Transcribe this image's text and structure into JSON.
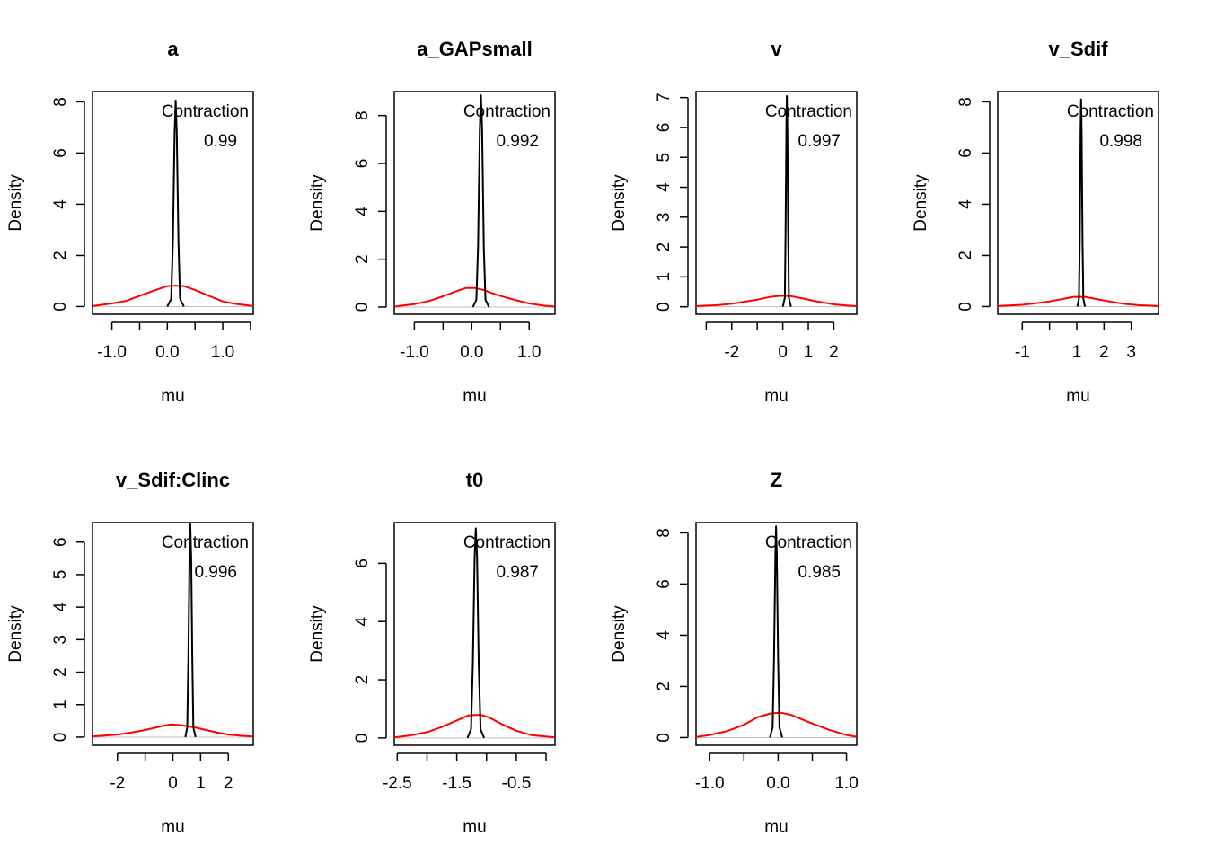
{
  "chart_data": [
    {
      "type": "line",
      "title": "a",
      "xlabel": "mu",
      "ylabel": "Density",
      "xlim": [
        -1.35,
        1.55
      ],
      "ylim": [
        -0.3,
        8.4
      ],
      "xticks": [
        -1.0,
        -0.5,
        0.0,
        0.5,
        1.0,
        1.5
      ],
      "xtick_labels": [
        "-1.0",
        "",
        "0.0",
        "",
        "1.0",
        ""
      ],
      "yticks": [
        0,
        2,
        4,
        6,
        8
      ],
      "ytick_labels": [
        "0",
        "2",
        "4",
        "6",
        "8"
      ],
      "annotation": {
        "label": "Contraction",
        "value": "0.99"
      },
      "series": [
        {
          "color": "#ff0000",
          "x": [
            -1.35,
            -1.0,
            -0.75,
            -0.5,
            -0.25,
            0.0,
            0.15,
            0.3,
            0.5,
            0.75,
            1.0,
            1.25,
            1.55
          ],
          "y": [
            0.02,
            0.12,
            0.22,
            0.42,
            0.62,
            0.8,
            0.82,
            0.8,
            0.65,
            0.42,
            0.2,
            0.1,
            0.02
          ]
        },
        {
          "color": "#000000",
          "x": [
            0.0,
            0.07,
            0.1,
            0.13,
            0.15,
            0.17,
            0.2,
            0.23,
            0.3
          ],
          "y": [
            0.0,
            0.3,
            2.5,
            6.8,
            8.05,
            6.8,
            2.5,
            0.3,
            0.0
          ]
        }
      ]
    },
    {
      "type": "line",
      "title": "a_GAPsmall",
      "xlabel": "mu",
      "ylabel": "Density",
      "xlim": [
        -1.35,
        1.45
      ],
      "ylim": [
        -0.3,
        9.0
      ],
      "xticks": [
        -1.0,
        -0.5,
        0.0,
        0.5,
        1.0
      ],
      "xtick_labels": [
        "-1.0",
        "",
        "0.0",
        "",
        "1.0"
      ],
      "yticks": [
        0,
        2,
        4,
        6,
        8
      ],
      "ytick_labels": [
        "0",
        "2",
        "4",
        "6",
        "8"
      ],
      "annotation": {
        "label": "Contraction",
        "value": "0.992"
      },
      "series": [
        {
          "color": "#ff0000",
          "x": [
            -1.35,
            -1.0,
            -0.75,
            -0.5,
            -0.25,
            -0.1,
            0.05,
            0.2,
            0.45,
            0.75,
            1.0,
            1.25,
            1.45
          ],
          "y": [
            0.02,
            0.12,
            0.25,
            0.45,
            0.68,
            0.8,
            0.8,
            0.72,
            0.5,
            0.3,
            0.15,
            0.06,
            0.02
          ]
        },
        {
          "color": "#000000",
          "x": [
            0.02,
            0.08,
            0.11,
            0.14,
            0.16,
            0.18,
            0.21,
            0.24,
            0.3
          ],
          "y": [
            0.0,
            0.3,
            2.5,
            7.5,
            8.85,
            7.5,
            2.5,
            0.3,
            0.0
          ]
        }
      ]
    },
    {
      "type": "line",
      "title": "v",
      "xlabel": "mu",
      "ylabel": "Density",
      "xlim": [
        -3.4,
        2.9
      ],
      "ylim": [
        -0.25,
        7.2
      ],
      "xticks": [
        -3,
        -2,
        -1,
        0,
        1,
        2
      ],
      "xtick_labels": [
        "",
        "-2",
        "",
        "0",
        "1",
        "2"
      ],
      "yticks": [
        0,
        1,
        2,
        3,
        4,
        5,
        6,
        7
      ],
      "ytick_labels": [
        "0",
        "1",
        "2",
        "3",
        "4",
        "5",
        "6",
        "7"
      ],
      "annotation": {
        "label": "Contraction",
        "value": "0.997"
      },
      "series": [
        {
          "color": "#ff0000",
          "x": [
            -3.4,
            -2.5,
            -2.0,
            -1.5,
            -1.0,
            -0.5,
            -0.1,
            0.3,
            0.8,
            1.2,
            1.6,
            2.0,
            2.5,
            2.9
          ],
          "y": [
            0.02,
            0.06,
            0.1,
            0.17,
            0.24,
            0.33,
            0.37,
            0.36,
            0.28,
            0.2,
            0.14,
            0.08,
            0.04,
            0.02
          ]
        },
        {
          "color": "#000000",
          "x": [
            0.0,
            0.08,
            0.11,
            0.14,
            0.16,
            0.18,
            0.21,
            0.24,
            0.32
          ],
          "y": [
            0.0,
            0.3,
            2.5,
            6.0,
            7.05,
            6.0,
            2.5,
            0.3,
            0.0
          ]
        }
      ]
    },
    {
      "type": "line",
      "title": "v_Sdif",
      "xlabel": "mu",
      "ylabel": "Density",
      "xlim": [
        -1.9,
        4.0
      ],
      "ylim": [
        -0.3,
        8.4
      ],
      "xticks": [
        -1,
        0,
        1,
        2,
        3
      ],
      "xtick_labels": [
        "-1",
        "",
        "1",
        "2",
        "3"
      ],
      "yticks": [
        0,
        2,
        4,
        6,
        8
      ],
      "ytick_labels": [
        "0",
        "2",
        "4",
        "6",
        "8"
      ],
      "annotation": {
        "label": "Contraction",
        "value": "0.998"
      },
      "series": [
        {
          "color": "#ff0000",
          "x": [
            -1.9,
            -1.0,
            -0.5,
            0.0,
            0.5,
            0.9,
            1.3,
            1.8,
            2.3,
            2.8,
            3.3,
            4.0
          ],
          "y": [
            0.02,
            0.07,
            0.13,
            0.2,
            0.3,
            0.38,
            0.38,
            0.28,
            0.18,
            0.1,
            0.05,
            0.02
          ]
        },
        {
          "color": "#000000",
          "x": [
            1.02,
            1.08,
            1.11,
            1.14,
            1.16,
            1.18,
            1.21,
            1.24,
            1.3
          ],
          "y": [
            0.0,
            0.3,
            2.5,
            6.8,
            8.1,
            6.8,
            2.5,
            0.3,
            0.0
          ]
        }
      ]
    },
    {
      "type": "line",
      "title": "v_Sdif:Clinc",
      "xlabel": "mu",
      "ylabel": "Density",
      "xlim": [
        -2.9,
        2.9
      ],
      "ylim": [
        -0.25,
        6.6
      ],
      "xticks": [
        -2,
        -1,
        0,
        1,
        2
      ],
      "xtick_labels": [
        "-2",
        "",
        "0",
        "1",
        "2"
      ],
      "yticks": [
        0,
        1,
        2,
        3,
        4,
        5,
        6
      ],
      "ytick_labels": [
        "0",
        "1",
        "2",
        "3",
        "4",
        "5",
        "6"
      ],
      "annotation": {
        "label": "Contraction",
        "value": "0.996"
      },
      "series": [
        {
          "color": "#ff0000",
          "x": [
            -2.9,
            -2.0,
            -1.5,
            -1.0,
            -0.5,
            -0.1,
            0.3,
            0.8,
            1.2,
            1.6,
            2.0,
            2.5,
            2.9
          ],
          "y": [
            0.02,
            0.08,
            0.14,
            0.22,
            0.32,
            0.39,
            0.37,
            0.3,
            0.22,
            0.14,
            0.08,
            0.04,
            0.02
          ]
        },
        {
          "color": "#000000",
          "x": [
            0.45,
            0.52,
            0.56,
            0.6,
            0.63,
            0.66,
            0.7,
            0.74,
            0.82
          ],
          "y": [
            0.0,
            0.3,
            2.5,
            5.5,
            6.55,
            5.5,
            2.5,
            0.3,
            0.0
          ]
        }
      ]
    },
    {
      "type": "line",
      "title": "t0",
      "xlabel": "mu",
      "ylabel": "Density",
      "xlim": [
        -2.55,
        0.15
      ],
      "ylim": [
        -0.25,
        7.4
      ],
      "xticks": [
        -2.5,
        -2.0,
        -1.5,
        -1.0,
        -0.5,
        0.0
      ],
      "xtick_labels": [
        "-2.5",
        "",
        "-1.5",
        "",
        "-0.5",
        ""
      ],
      "yticks": [
        0,
        2,
        4,
        6
      ],
      "ytick_labels": [
        "0",
        "2",
        "4",
        "6"
      ],
      "annotation": {
        "label": "Contraction",
        "value": "0.987"
      },
      "series": [
        {
          "color": "#ff0000",
          "x": [
            -2.55,
            -2.3,
            -2.0,
            -1.75,
            -1.5,
            -1.3,
            -1.1,
            -0.95,
            -0.75,
            -0.5,
            -0.25,
            0.15
          ],
          "y": [
            0.02,
            0.08,
            0.2,
            0.38,
            0.6,
            0.78,
            0.8,
            0.7,
            0.48,
            0.25,
            0.1,
            0.02
          ]
        },
        {
          "color": "#000000",
          "x": [
            -1.32,
            -1.26,
            -1.23,
            -1.2,
            -1.18,
            -1.16,
            -1.13,
            -1.1,
            -1.04
          ],
          "y": [
            0.0,
            0.3,
            2.5,
            6.2,
            7.2,
            6.2,
            2.5,
            0.3,
            0.0
          ]
        }
      ]
    },
    {
      "type": "line",
      "title": "Z",
      "xlabel": "mu",
      "ylabel": "Density",
      "xlim": [
        -1.2,
        1.15
      ],
      "ylim": [
        -0.3,
        8.4
      ],
      "xticks": [
        -1.0,
        -0.5,
        0.0,
        0.5,
        1.0
      ],
      "xtick_labels": [
        "-1.0",
        "",
        "0.0",
        "",
        "1.0"
      ],
      "yticks": [
        0,
        2,
        4,
        6,
        8
      ],
      "ytick_labels": [
        "0",
        "2",
        "4",
        "6",
        "8"
      ],
      "annotation": {
        "label": "Contraction",
        "value": "0.985"
      },
      "series": [
        {
          "color": "#ff0000",
          "x": [
            -1.2,
            -1.0,
            -0.75,
            -0.5,
            -0.3,
            -0.1,
            0.05,
            0.2,
            0.45,
            0.75,
            1.0,
            1.15
          ],
          "y": [
            0.02,
            0.1,
            0.25,
            0.5,
            0.8,
            0.95,
            0.97,
            0.88,
            0.6,
            0.3,
            0.1,
            0.03
          ]
        },
        {
          "color": "#000000",
          "x": [
            -0.12,
            -0.08,
            -0.06,
            -0.04,
            -0.03,
            -0.02,
            0.0,
            0.02,
            0.06
          ],
          "y": [
            0.0,
            0.4,
            3.0,
            7.2,
            8.25,
            7.2,
            3.0,
            0.4,
            0.0
          ]
        }
      ]
    }
  ]
}
